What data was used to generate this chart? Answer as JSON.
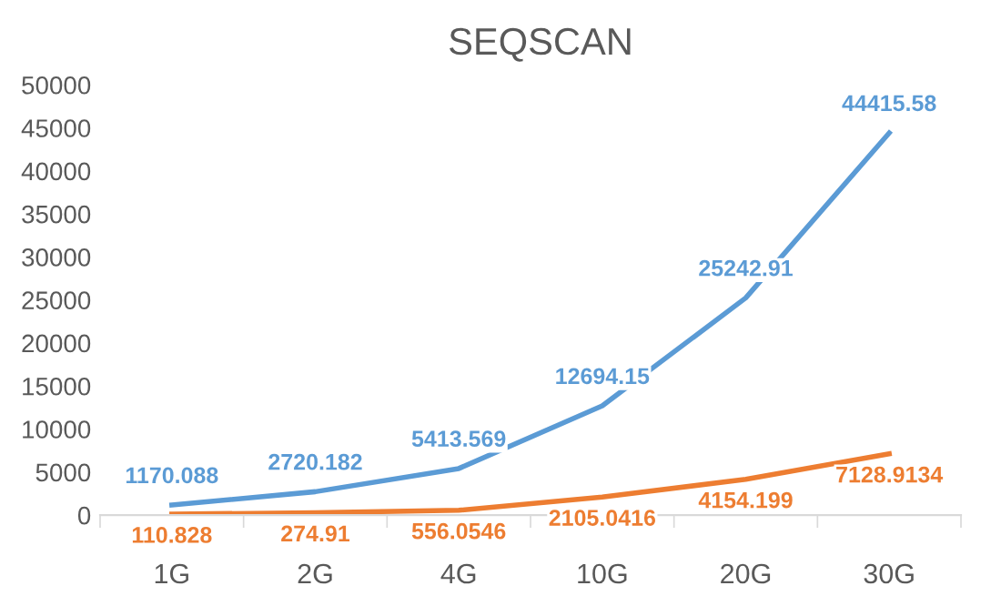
{
  "chart_data": {
    "type": "line",
    "title": "SEQSCAN",
    "categories": [
      "1G",
      "2G",
      "4G",
      "10G",
      "20G",
      "30G"
    ],
    "series": [
      {
        "color": "#5b9bd5",
        "values": [
          1170.088,
          2720.182,
          5413.569,
          12694.15,
          25242.91,
          44415.58
        ]
      },
      {
        "color": "#ed7d31",
        "values": [
          110.828,
          274.91,
          556.0546,
          2105.0416,
          4154.199,
          7128.9134
        ]
      }
    ],
    "ylim": [
      0,
      50000
    ],
    "yticks": [
      0,
      5000,
      10000,
      15000,
      20000,
      25000,
      30000,
      35000,
      40000,
      45000,
      50000
    ],
    "data_labels": true,
    "grid": false,
    "marker": "none",
    "line_style": "solid"
  }
}
